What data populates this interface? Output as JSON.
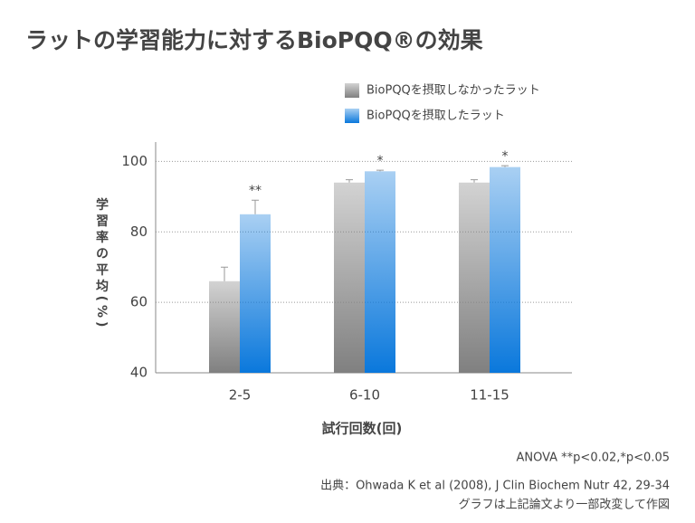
{
  "chart_data": {
    "type": "bar",
    "title": "ラットの学習能力に対するBioPQQ®の効果",
    "y_label": "学習率の平均(%)",
    "x_label": "試行回数(回)",
    "categories": [
      "2-5",
      "6-10",
      "11-15"
    ],
    "series": [
      {
        "name": "BioPQQを摂取しなかったラット",
        "color": "#808080",
        "values": [
          66,
          94,
          94
        ],
        "errors": [
          4,
          0.8,
          0.8
        ]
      },
      {
        "name": "BioPQQを摂取したラット",
        "color": "#0a78dc",
        "values": [
          85,
          97.2,
          98.4
        ],
        "errors": [
          4,
          0.3,
          0.4
        ],
        "significance": [
          "**",
          "*",
          "*"
        ]
      }
    ],
    "ylim": [
      40,
      105.5
    ],
    "yticks": [
      40,
      60,
      80,
      100
    ],
    "grid": true,
    "note": "ANOVA **p<0.02,*p<0.05",
    "source": "出典：Ohwada K et al (2008), J Clin Biochem Nutr 42, 29-34",
    "source_note": "グラフは上記論文より一部改変して作図"
  }
}
